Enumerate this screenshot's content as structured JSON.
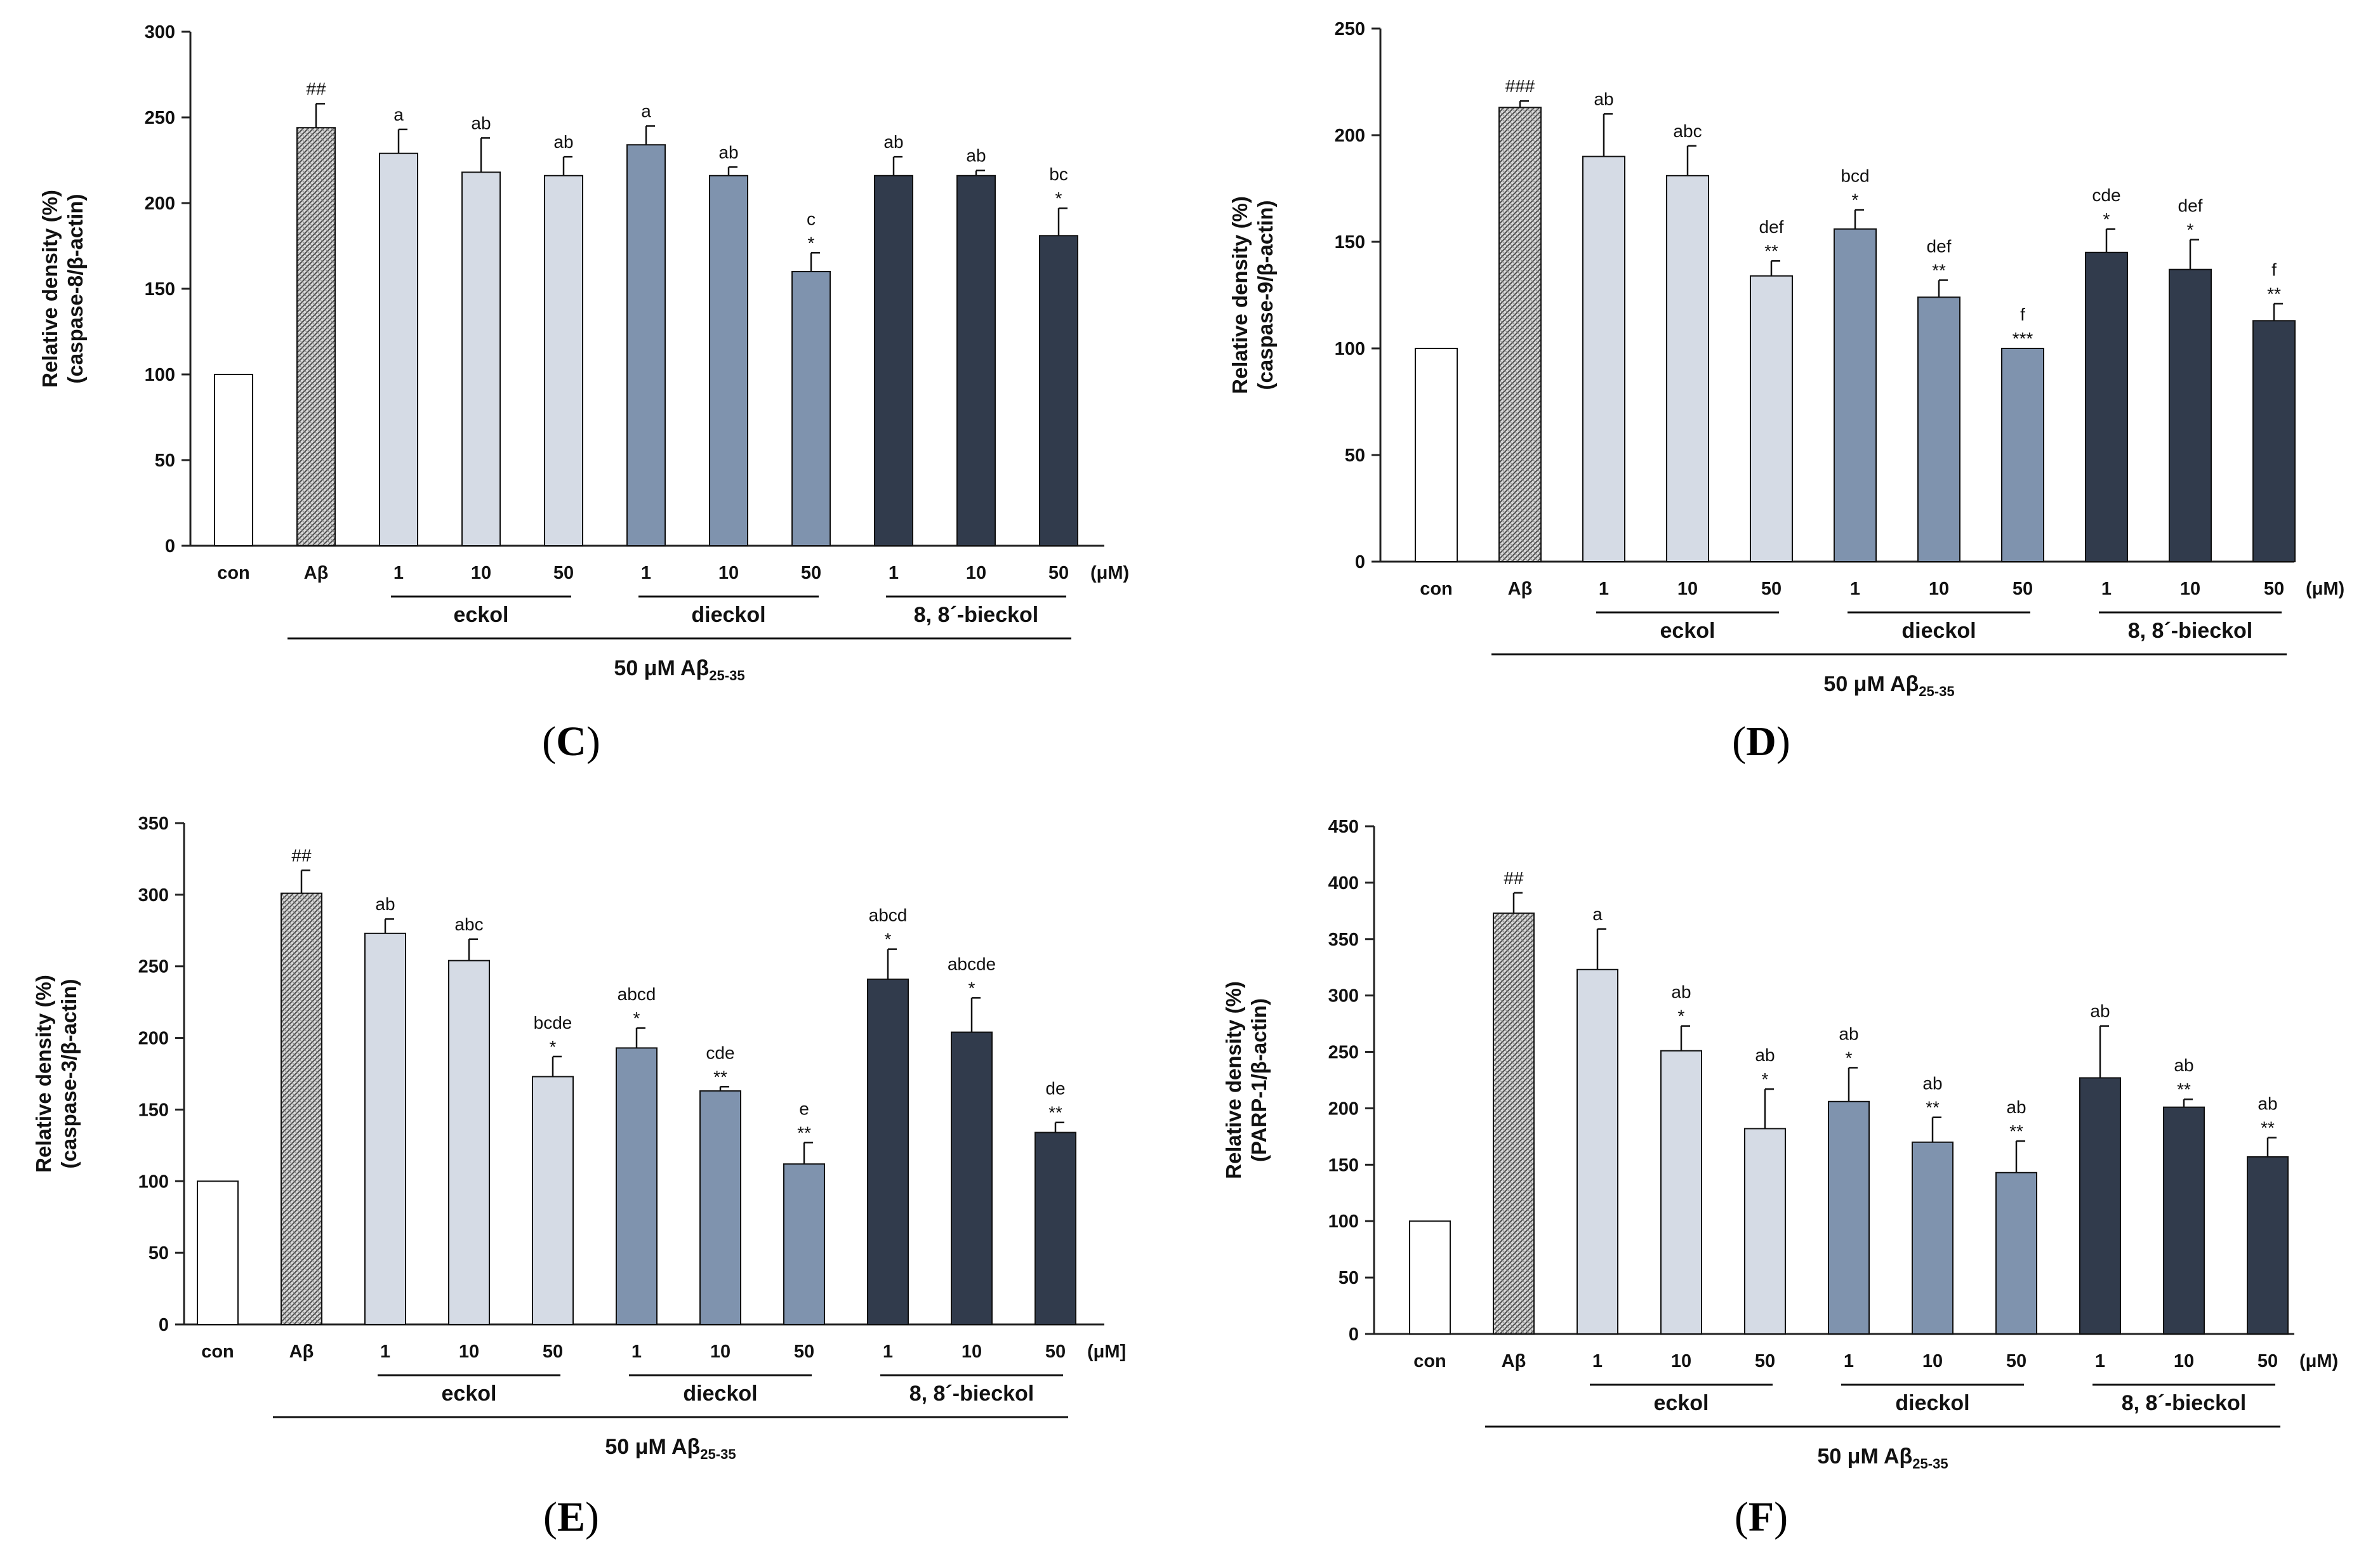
{
  "chart_data": [
    {
      "type": "bar",
      "panel_label": "C",
      "ylabel_line1": "Relative density (%)",
      "ylabel_line2": "(caspase-8/β-actin)",
      "ylim": [
        0,
        300
      ],
      "yticks": [
        0,
        50,
        100,
        150,
        200,
        250,
        300
      ],
      "categories": [
        "con",
        "Aβ",
        "1",
        "10",
        "50",
        "1",
        "10",
        "50",
        "1",
        "10",
        "50"
      ],
      "values": [
        100,
        244,
        229,
        218,
        216,
        234,
        216,
        160,
        216,
        216,
        181
      ],
      "errors": [
        0,
        14,
        14,
        20,
        11,
        11,
        5,
        11,
        11,
        3,
        16
      ],
      "annotations_letters": [
        "",
        "##",
        "a",
        "ab",
        "ab",
        "a",
        "ab",
        "c",
        "ab",
        "ab",
        "bc"
      ],
      "annotations_stars": [
        "",
        "",
        "",
        "",
        "",
        "",
        "",
        "*",
        "",
        "",
        "*"
      ],
      "unit_label": "(μM)",
      "groups": [
        "eckol",
        "dieckol",
        "8, 8´-bieckol"
      ],
      "treatment_label": "50 μM Aβ",
      "treatment_subscript": "25-35"
    },
    {
      "type": "bar",
      "panel_label": "D",
      "ylabel_line1": "Relative density (%)",
      "ylabel_line2": "(caspase-9/β-actin)",
      "ylim": [
        0,
        250
      ],
      "yticks": [
        0,
        50,
        100,
        150,
        200,
        250
      ],
      "categories": [
        "con",
        "Aβ",
        "1",
        "10",
        "50",
        "1",
        "10",
        "50",
        "1",
        "10",
        "50"
      ],
      "values": [
        100,
        213,
        190,
        181,
        134,
        156,
        124,
        100,
        145,
        137,
        113
      ],
      "errors": [
        0,
        3,
        20,
        14,
        7,
        9,
        8,
        0,
        11,
        14,
        8
      ],
      "annotations_letters": [
        "",
        "###",
        "ab",
        "abc",
        "def",
        "bcd",
        "def",
        "f",
        "cde",
        "def",
        "f"
      ],
      "annotations_stars": [
        "",
        "",
        "",
        "",
        "**",
        "*",
        "**",
        "***",
        "*",
        "*",
        "**"
      ],
      "unit_label": "(μM)",
      "groups": [
        "eckol",
        "dieckol",
        "8, 8´-bieckol"
      ],
      "treatment_label": "50 μM Aβ",
      "treatment_subscript": "25-35"
    },
    {
      "type": "bar",
      "panel_label": "E",
      "ylabel_line1": "Relative density (%)",
      "ylabel_line2": "(caspase-3/β-actin)",
      "ylim": [
        0,
        350
      ],
      "yticks": [
        0,
        50,
        100,
        150,
        200,
        250,
        300,
        350
      ],
      "categories": [
        "con",
        "Aβ",
        "1",
        "10",
        "50",
        "1",
        "10",
        "50",
        "1",
        "10",
        "50"
      ],
      "values": [
        100,
        301,
        273,
        254,
        173,
        193,
        163,
        112,
        241,
        204,
        134
      ],
      "errors": [
        0,
        16,
        10,
        15,
        14,
        14,
        3,
        15,
        21,
        24,
        7
      ],
      "annotations_letters": [
        "",
        "##",
        "ab",
        "abc",
        "bcde",
        "abcd",
        "cde",
        "e",
        "abcd",
        "abcde",
        "de"
      ],
      "annotations_stars": [
        "",
        "",
        "",
        "",
        "*",
        "*",
        "**",
        "**",
        "*",
        "*",
        "**"
      ],
      "unit_label": "(μM]",
      "groups": [
        "eckol",
        "dieckol",
        "8, 8´-bieckol"
      ],
      "treatment_label": "50 μM Aβ",
      "treatment_subscript": "25-35"
    },
    {
      "type": "bar",
      "panel_label": "F",
      "ylabel_line1": "Relative density (%)",
      "ylabel_line2": "(PARP-1/β-actin)",
      "ylim": [
        0,
        450
      ],
      "yticks": [
        0,
        50,
        100,
        150,
        200,
        250,
        300,
        350,
        400,
        450
      ],
      "categories": [
        "con",
        "Aβ",
        "1",
        "10",
        "50",
        "1",
        "10",
        "50",
        "1",
        "10",
        "50"
      ],
      "values": [
        100,
        373,
        323,
        251,
        182,
        206,
        170,
        143,
        227,
        201,
        157
      ],
      "errors": [
        0,
        18,
        36,
        22,
        35,
        30,
        22,
        28,
        46,
        7,
        17
      ],
      "annotations_letters": [
        "",
        "##",
        "a",
        "ab",
        "ab",
        "ab",
        "ab",
        "ab",
        "ab",
        "ab",
        "ab"
      ],
      "annotations_stars": [
        "",
        "",
        "",
        "*",
        "*",
        "*",
        "**",
        "**",
        "",
        "**",
        "**"
      ],
      "unit_label": "(μM)",
      "groups": [
        "eckol",
        "dieckol",
        "8, 8´-bieckol"
      ],
      "treatment_label": "50 μM Aβ",
      "treatment_subscript": "25-35"
    }
  ],
  "style": {
    "bar_colors": [
      "#ffffff",
      "#bdbdbd",
      "#d5dbe5",
      "#d5dbe5",
      "#d5dbe5",
      "#7f93ae",
      "#7f93ae",
      "#7f93ae",
      "#313b4c",
      "#313b4c",
      "#313b4c"
    ],
    "axis_color": "#222222"
  }
}
